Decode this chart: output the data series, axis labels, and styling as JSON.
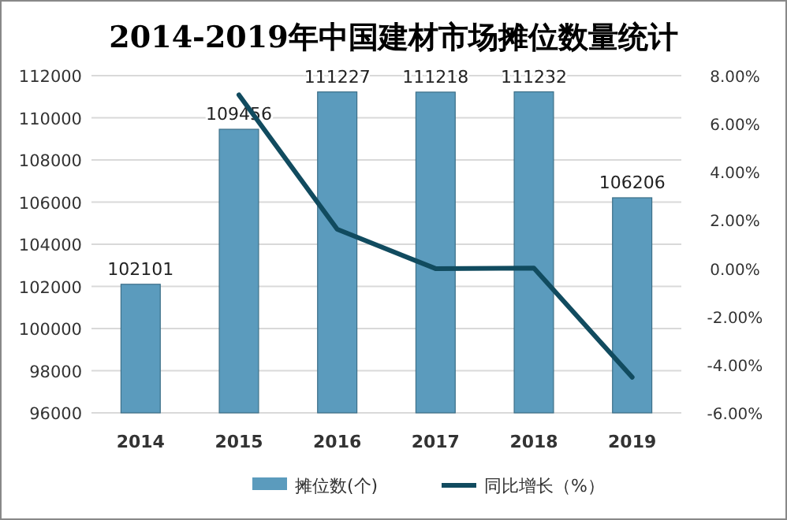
{
  "chart_data": {
    "type": "bar",
    "title": "2014-2019年中国建材市场摊位数量统计",
    "categories": [
      "2014",
      "2015",
      "2016",
      "2017",
      "2018",
      "2019"
    ],
    "series": [
      {
        "name": "摊位数(个)",
        "color": "#5b9bbd",
        "values": [
          102101,
          109456,
          111227,
          111218,
          111232,
          106206
        ],
        "value_labels": [
          "102101",
          "109456",
          "111227",
          "111218",
          "111232",
          "106206"
        ]
      },
      {
        "name": "同比增长（%）",
        "type": "line",
        "axis": "y2",
        "color": "#114b5f",
        "values": [
          null,
          7.2,
          1.62,
          -0.01,
          0.01,
          -4.52
        ]
      }
    ],
    "ylim": [
      96000,
      112000
    ],
    "yticks": [
      96000,
      98000,
      100000,
      102000,
      104000,
      106000,
      108000,
      110000,
      112000
    ],
    "y2lim": [
      -6,
      8
    ],
    "y2ticks": [
      {
        "value": -6,
        "label": "-6.00%"
      },
      {
        "value": -4,
        "label": "-4.00%"
      },
      {
        "value": -2,
        "label": "-2.00%"
      },
      {
        "value": 0,
        "label": "0.00%"
      },
      {
        "value": 2,
        "label": "2.00%"
      },
      {
        "value": 4,
        "label": "4.00%"
      },
      {
        "value": 6,
        "label": "6.00%"
      },
      {
        "value": 8,
        "label": "8.00%"
      }
    ],
    "grid": "y",
    "legend": "bottom"
  }
}
